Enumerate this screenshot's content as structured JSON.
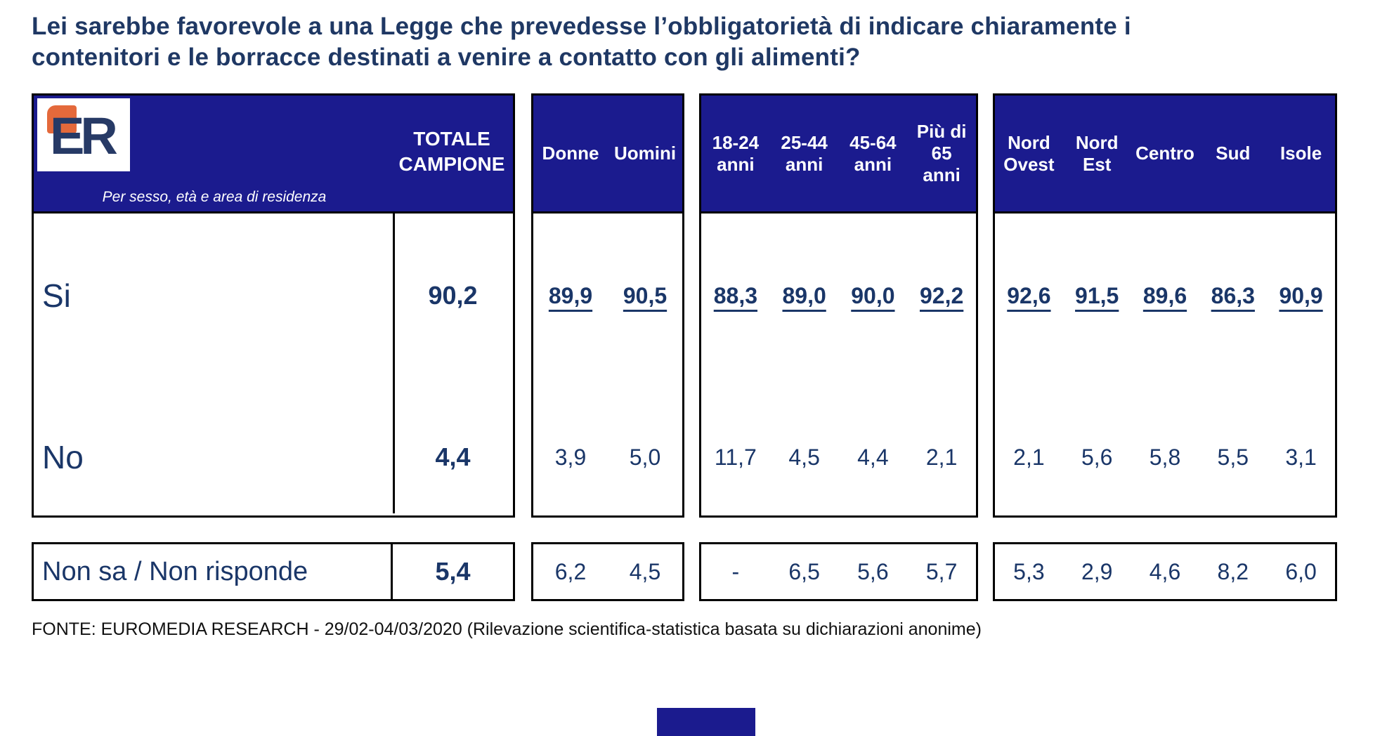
{
  "title_lines": [
    "Lei sarebbe favorevole a una Legge che prevedesse l’obbligatorietà di indicare chiaramente i",
    "contenitori e le borracce destinati a venire a contatto con gli alimenti?"
  ],
  "logo": {
    "letters": "ER"
  },
  "header": {
    "subtitle": "Per sesso, età e area di residenza",
    "totale_lines": [
      "TOTALE",
      "CAMPIONE"
    ],
    "gender_cols": [
      "Donne",
      "Uomini"
    ],
    "age_cols": [
      [
        "18-24",
        "anni"
      ],
      [
        "25-44",
        "anni"
      ],
      [
        "45-64",
        "anni"
      ],
      [
        "Più di",
        "65",
        "anni"
      ]
    ],
    "region_cols": [
      [
        "Nord",
        "Ovest"
      ],
      [
        "Nord",
        "Est"
      ],
      [
        "Centro"
      ],
      [
        "Sud"
      ],
      [
        "Isole"
      ]
    ]
  },
  "rows": [
    {
      "label": "Si",
      "totale": "90,2",
      "gender": [
        "89,9",
        "90,5"
      ],
      "age": [
        "88,3",
        "89,0",
        "90,0",
        "92,2"
      ],
      "region": [
        "92,6",
        "91,5",
        "89,6",
        "86,3",
        "90,9"
      ]
    },
    {
      "label": "No",
      "totale": "4,4",
      "gender": [
        "3,9",
        "5,0"
      ],
      "age": [
        "11,7",
        "4,5",
        "4,4",
        "2,1"
      ],
      "region": [
        "2,1",
        "5,6",
        "5,8",
        "5,5",
        "3,1"
      ]
    }
  ],
  "nonsa": {
    "label": "Non sa / Non risponde",
    "totale": "5,4",
    "gender": [
      "6,2",
      "4,5"
    ],
    "age": [
      "-",
      "6,5",
      "5,6",
      "5,7"
    ],
    "region": [
      "5,3",
      "2,9",
      "4,6",
      "8,2",
      "6,0"
    ]
  },
  "source": "FONTE: EUROMEDIA RESEARCH - 29/02-04/03/2020 (Rilevazione scientifica-statistica basata su dichiarazioni anonime)",
  "colors": {
    "header_bg": "#1B1B8E",
    "title_text": "#1F3864",
    "data_text": "#1A3668",
    "logo_orange": "#E4693B",
    "logo_navy": "#273A66",
    "border_black": "#000000"
  },
  "chart_data": {
    "type": "table",
    "title": "Lei sarebbe favorevole a una Legge che prevedesse l’obbligatorietà di indicare chiaramente i contenitori e le borracce destinati a venire a contatto con gli alimenti?",
    "columns": [
      "TOTALE CAMPIONE",
      "Donne",
      "Uomini",
      "18-24 anni",
      "25-44 anni",
      "45-64 anni",
      "Più di 65 anni",
      "Nord Ovest",
      "Nord Est",
      "Centro",
      "Sud",
      "Isole"
    ],
    "rows": [
      {
        "label": "Si",
        "values": [
          90.2,
          89.9,
          90.5,
          88.3,
          89.0,
          90.0,
          92.2,
          92.6,
          91.5,
          89.6,
          86.3,
          90.9
        ]
      },
      {
        "label": "No",
        "values": [
          4.4,
          3.9,
          5.0,
          11.7,
          4.5,
          4.4,
          2.1,
          2.1,
          5.6,
          5.8,
          5.5,
          3.1
        ]
      },
      {
        "label": "Non sa / Non risponde",
        "values": [
          5.4,
          6.2,
          4.5,
          null,
          6.5,
          5.6,
          5.7,
          5.3,
          2.9,
          4.6,
          8.2,
          6.0
        ]
      }
    ],
    "source": "FONTE: EUROMEDIA RESEARCH - 29/02-04/03/2020 (Rilevazione scientifica-statistica basata su dichiarazioni anonime)"
  }
}
